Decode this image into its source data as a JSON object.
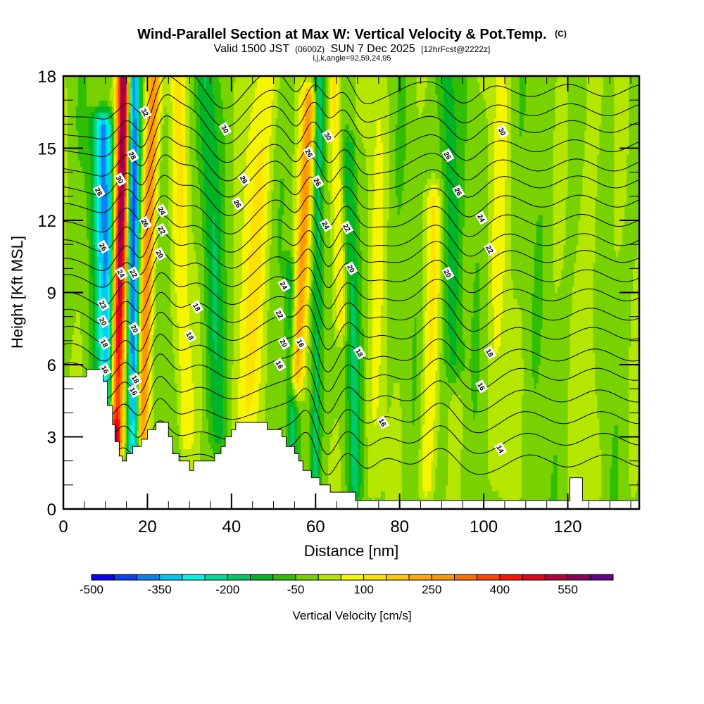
{
  "chart_data": {
    "type": "heatmap",
    "title": "Wind-Parallel Section at Max W: Vertical Velocity & Pot.Temp.",
    "title_suffix": "(C)",
    "subtitle_parts": [
      "Valid 1500 JST",
      "(0600Z)",
      "SUN 7 Dec 2025",
      "[12hrFcst@2222z]"
    ],
    "subsubtitle": "i,j,k,angle=92,59,24,95",
    "xlabel": "Distance [nm]",
    "ylabel": "Height [Kft MSL]",
    "xlim": [
      0,
      137
    ],
    "ylim": [
      0,
      18
    ],
    "x_ticks": [
      0,
      20,
      40,
      60,
      80,
      100,
      120
    ],
    "x_minor_step": 5,
    "y_ticks": [
      0,
      3,
      6,
      9,
      12,
      15,
      18
    ],
    "y_minor_step": 1,
    "colorbar": {
      "title": "Vertical Velocity [cm/s]",
      "min": -500,
      "step": 50,
      "labels": [
        -500,
        -350,
        -200,
        -50,
        100,
        250,
        400,
        550
      ],
      "colors": [
        "#0a00f5",
        "#0a40f5",
        "#0a82f0",
        "#00c8f5",
        "#00f5e6",
        "#00dca0",
        "#00c864",
        "#00b428",
        "#32be00",
        "#78d200",
        "#b4e600",
        "#f5f500",
        "#ffe100",
        "#ffc800",
        "#ffaa00",
        "#ff9600",
        "#ff6e00",
        "#ff4600",
        "#ff1400",
        "#e6001e",
        "#b4003c",
        "#8c005a",
        "#64008c"
      ]
    },
    "background_value": -20,
    "w_features": [
      {
        "name": "updraft-main",
        "x_top": 14.5,
        "x_bot": 12.5,
        "width": 2.4,
        "peak": 620,
        "ytop": 18,
        "ybot": 3.0
      },
      {
        "name": "downdraft-left",
        "x_top": 9.5,
        "x_bot": 11.0,
        "width": 4.0,
        "peak": -330,
        "ytop": 16,
        "ybot": 4.5
      },
      {
        "name": "downdraft-mid",
        "x_top": 16.5,
        "x_bot": 16.8,
        "width": 2.2,
        "peak": -420,
        "ytop": 18,
        "ybot": 2.5
      },
      {
        "name": "updraft-second",
        "x_top": 21.5,
        "x_bot": 18.5,
        "width": 2.6,
        "peak": 320,
        "ytop": 18,
        "ybot": 3.0
      },
      {
        "name": "updraft-60nm",
        "x_top": 58.5,
        "x_bot": 55.5,
        "width": 2.4,
        "peak": 280,
        "ytop": 17,
        "ybot": 5.5
      },
      {
        "name": "downdraft-60nm",
        "x_top": 61.0,
        "x_bot": 60.0,
        "width": 2.0,
        "peak": -170,
        "ytop": 18,
        "ybot": 1.0
      },
      {
        "name": "updraft-64nm",
        "x_top": 64.5,
        "x_bot": 66.0,
        "width": 2.2,
        "peak": 150,
        "ytop": 18,
        "ybot": 8
      },
      {
        "name": "downdraft-68nm",
        "x_top": 68.0,
        "x_bot": 69.5,
        "width": 2.5,
        "peak": -120,
        "ytop": 15,
        "ybot": 1
      },
      {
        "name": "updraft-48nm",
        "x_top": 48.0,
        "x_bot": 42.0,
        "width": 5.0,
        "peak": 120,
        "ytop": 18,
        "ybot": 2
      },
      {
        "name": "updraft-86nm",
        "x_top": 88.0,
        "x_bot": 86.5,
        "width": 3.0,
        "peak": 110,
        "ytop": 13,
        "ybot": 1
      },
      {
        "name": "downdraft-92nm",
        "x_top": 91.0,
        "x_bot": 93.0,
        "width": 3.5,
        "peak": -110,
        "ytop": 18,
        "ybot": 6
      },
      {
        "name": "updraft-28nm",
        "x_top": 27.0,
        "x_bot": 29.0,
        "width": 3.0,
        "peak": 100,
        "ytop": 18,
        "ybot": 3
      },
      {
        "name": "downdraft-36nm",
        "x_top": 34.0,
        "x_bot": 37.0,
        "width": 3.5,
        "peak": -110,
        "ytop": 18,
        "ybot": 3
      },
      {
        "name": "downdraft-54nm",
        "x_top": 54.0,
        "x_bot": 54.5,
        "width": 1.8,
        "peak": -120,
        "ytop": 10,
        "ybot": 2
      },
      {
        "name": "updraft-75nm",
        "x_top": 75.0,
        "x_bot": 74.0,
        "width": 3.0,
        "peak": 60,
        "ytop": 18,
        "ybot": 1
      },
      {
        "name": "updraft-105nm",
        "x_top": 104.0,
        "x_bot": 103.0,
        "width": 4.0,
        "peak": 60,
        "ytop": 18,
        "ybot": 1
      },
      {
        "name": "updraft-125nm",
        "x_top": 126.0,
        "x_bot": 125.0,
        "width": 4.0,
        "peak": 55,
        "ytop": 18,
        "ybot": 1
      }
    ],
    "terrain": [
      [
        0,
        5.5
      ],
      [
        5.5,
        5.5
      ],
      [
        5.5,
        5.8
      ],
      [
        9.5,
        5.8
      ],
      [
        9.5,
        5.3
      ],
      [
        10.5,
        5.3
      ],
      [
        10.5,
        4.3
      ],
      [
        11.7,
        4.3
      ],
      [
        11.7,
        3.5
      ],
      [
        12.3,
        3.5
      ],
      [
        12.3,
        2.8
      ],
      [
        13.3,
        2.8
      ],
      [
        13.3,
        2.2
      ],
      [
        14,
        2.2
      ],
      [
        14,
        2.0
      ],
      [
        15,
        2.0
      ],
      [
        15,
        2.3
      ],
      [
        16.5,
        2.3
      ],
      [
        16.5,
        2.6
      ],
      [
        18.5,
        2.6
      ],
      [
        18.5,
        2.9
      ],
      [
        20,
        2.9
      ],
      [
        20,
        3.3
      ],
      [
        22,
        3.3
      ],
      [
        22,
        3.6
      ],
      [
        25,
        3.6
      ],
      [
        25,
        3.0
      ],
      [
        26,
        3.0
      ],
      [
        26,
        2.3
      ],
      [
        27.5,
        2.3
      ],
      [
        27.5,
        2.0
      ],
      [
        30,
        2.0
      ],
      [
        30,
        1.6
      ],
      [
        31,
        1.6
      ],
      [
        31,
        2.0
      ],
      [
        36,
        2.0
      ],
      [
        36,
        2.3
      ],
      [
        37.5,
        2.3
      ],
      [
        37.5,
        2.6
      ],
      [
        38.5,
        2.6
      ],
      [
        38.5,
        3.0
      ],
      [
        40,
        3.0
      ],
      [
        40,
        3.3
      ],
      [
        41,
        3.3
      ],
      [
        41,
        3.6
      ],
      [
        48.5,
        3.6
      ],
      [
        48.5,
        3.3
      ],
      [
        52,
        3.3
      ],
      [
        52,
        3.0
      ],
      [
        53,
        3.0
      ],
      [
        53,
        2.6
      ],
      [
        55,
        2.6
      ],
      [
        55,
        2.3
      ],
      [
        56,
        2.3
      ],
      [
        56,
        2.0
      ],
      [
        57,
        2.0
      ],
      [
        57,
        1.6
      ],
      [
        59,
        1.6
      ],
      [
        59,
        1.3
      ],
      [
        61,
        1.3
      ],
      [
        61,
        1.0
      ],
      [
        63.5,
        1.0
      ],
      [
        63.5,
        0.7
      ],
      [
        69.5,
        0.7
      ],
      [
        69.5,
        0.35
      ],
      [
        120.5,
        0.35
      ],
      [
        120.5,
        1.3
      ],
      [
        123.5,
        1.3
      ],
      [
        123.5,
        0.35
      ],
      [
        137,
        0.35
      ]
    ],
    "theta_levels": [
      14,
      15,
      16,
      17,
      18,
      19,
      20,
      21,
      22,
      23,
      24,
      25,
      26,
      27,
      28,
      29,
      30,
      31,
      32,
      33
    ],
    "theta_base": [
      {
        "level": 14,
        "height": 2.0
      },
      {
        "level": 15,
        "height": 2.9
      },
      {
        "level": 16,
        "height": 3.8
      },
      {
        "level": 17,
        "height": 4.7
      },
      {
        "level": 18,
        "height": 5.6
      },
      {
        "level": 19,
        "height": 6.4
      },
      {
        "level": 20,
        "height": 7.3
      },
      {
        "level": 21,
        "height": 8.1
      },
      {
        "level": 22,
        "height": 8.9
      },
      {
        "level": 23,
        "height": 9.7
      },
      {
        "level": 24,
        "height": 10.5
      },
      {
        "level": 25,
        "height": 11.2
      },
      {
        "level": 26,
        "height": 12.0
      },
      {
        "level": 27,
        "height": 12.8
      },
      {
        "level": 28,
        "height": 13.6
      },
      {
        "level": 29,
        "height": 14.3
      },
      {
        "level": 30,
        "height": 15.1
      },
      {
        "level": 31,
        "height": 15.9
      },
      {
        "level": 32,
        "height": 16.6
      },
      {
        "level": 33,
        "height": 17.4
      }
    ],
    "contour_labels": [
      {
        "text": "32",
        "x": 19.5,
        "y": 16.5
      },
      {
        "text": "30",
        "x": 38.5,
        "y": 15.8
      },
      {
        "text": "30",
        "x": 63.0,
        "y": 15.5
      },
      {
        "text": "30",
        "x": 104.5,
        "y": 15.7
      },
      {
        "text": "28",
        "x": 16.5,
        "y": 14.7
      },
      {
        "text": "30",
        "x": 13.5,
        "y": 13.7
      },
      {
        "text": "28",
        "x": 8.5,
        "y": 13.2
      },
      {
        "text": "26",
        "x": 58.5,
        "y": 14.8
      },
      {
        "text": "26",
        "x": 91.5,
        "y": 14.7
      },
      {
        "text": "26",
        "x": 43.0,
        "y": 13.7
      },
      {
        "text": "26",
        "x": 60.5,
        "y": 13.6
      },
      {
        "text": "26",
        "x": 94.0,
        "y": 13.2
      },
      {
        "text": "26",
        "x": 41.5,
        "y": 12.7
      },
      {
        "text": "24",
        "x": 23.5,
        "y": 12.4
      },
      {
        "text": "26",
        "x": 19.5,
        "y": 11.9
      },
      {
        "text": "22",
        "x": 23.5,
        "y": 11.6
      },
      {
        "text": "24",
        "x": 62.5,
        "y": 11.8
      },
      {
        "text": "22",
        "x": 67.5,
        "y": 11.7
      },
      {
        "text": "24",
        "x": 99.5,
        "y": 12.1
      },
      {
        "text": "26",
        "x": 9.5,
        "y": 10.9
      },
      {
        "text": "20",
        "x": 23.0,
        "y": 10.6
      },
      {
        "text": "22",
        "x": 101.5,
        "y": 10.8
      },
      {
        "text": "20",
        "x": 68.5,
        "y": 10.0
      },
      {
        "text": "20",
        "x": 91.5,
        "y": 9.8
      },
      {
        "text": "24",
        "x": 13.8,
        "y": 9.8
      },
      {
        "text": "22",
        "x": 16.8,
        "y": 9.8
      },
      {
        "text": "24",
        "x": 52.5,
        "y": 9.3
      },
      {
        "text": "23",
        "x": 9.5,
        "y": 8.5
      },
      {
        "text": "18",
        "x": 31.8,
        "y": 8.4
      },
      {
        "text": "22",
        "x": 51.5,
        "y": 8.1
      },
      {
        "text": "20",
        "x": 9.5,
        "y": 7.8
      },
      {
        "text": "20",
        "x": 17.0,
        "y": 7.5
      },
      {
        "text": "18",
        "x": 30.2,
        "y": 7.2
      },
      {
        "text": "18",
        "x": 9.8,
        "y": 6.9
      },
      {
        "text": "20",
        "x": 52.5,
        "y": 6.9
      },
      {
        "text": "16",
        "x": 56.5,
        "y": 6.9
      },
      {
        "text": "18",
        "x": 70.5,
        "y": 6.5
      },
      {
        "text": "18",
        "x": 101.5,
        "y": 6.5
      },
      {
        "text": "16",
        "x": 10.0,
        "y": 5.8
      },
      {
        "text": "16",
        "x": 51.5,
        "y": 6.0
      },
      {
        "text": "18",
        "x": 17.2,
        "y": 5.4
      },
      {
        "text": "16",
        "x": 99.5,
        "y": 5.1
      },
      {
        "text": "16",
        "x": 16.8,
        "y": 4.9
      },
      {
        "text": "16",
        "x": 76.0,
        "y": 3.6
      },
      {
        "text": "14",
        "x": 104.0,
        "y": 2.5
      }
    ]
  }
}
